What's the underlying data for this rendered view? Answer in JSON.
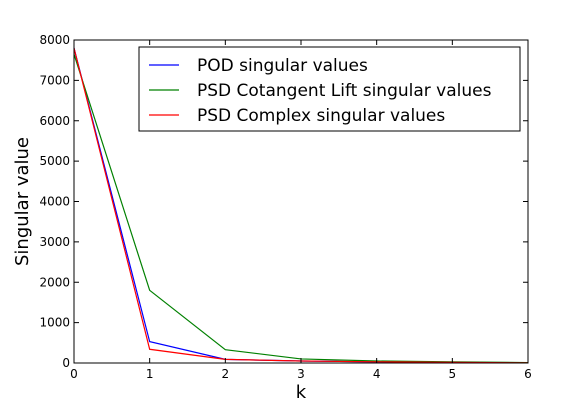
{
  "chart_data": {
    "type": "line",
    "xlabel": "k",
    "ylabel": "Singular value",
    "xlim": [
      0,
      6
    ],
    "ylim": [
      0,
      8000
    ],
    "xticks": [
      0,
      1,
      2,
      3,
      4,
      5,
      6
    ],
    "yticks": [
      0,
      1000,
      2000,
      3000,
      4000,
      5000,
      6000,
      7000,
      8000
    ],
    "grid": false,
    "legend_position": "top-right",
    "x": [
      0,
      1,
      2,
      3,
      4,
      5,
      6
    ],
    "series": [
      {
        "name": "POD singular values",
        "color": "#0000ff",
        "values": [
          7800,
          530,
          90,
          50,
          30,
          15,
          5
        ]
      },
      {
        "name": "PSD Cotangent Lift singular values",
        "color": "#008000",
        "values": [
          7650,
          1800,
          330,
          100,
          50,
          30,
          10
        ]
      },
      {
        "name": "PSD Complex singular values",
        "color": "#ff0000",
        "values": [
          7800,
          340,
          90,
          50,
          30,
          15,
          5
        ]
      }
    ]
  }
}
